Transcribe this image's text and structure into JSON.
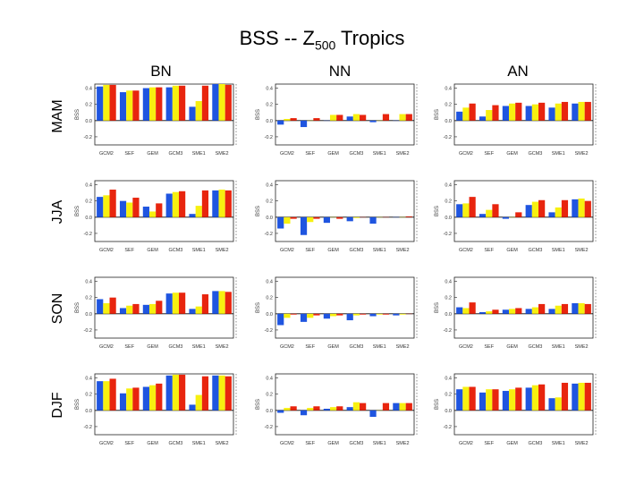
{
  "title": {
    "main": "BSS -- Z",
    "sub": "500",
    "suffix": " Tropics"
  },
  "columns": [
    "BN",
    "NN",
    "AN"
  ],
  "rows": [
    "MAM",
    "JJA",
    "SON",
    "DJF"
  ],
  "colors": {
    "blue": "#1f55e0",
    "yellow": "#f7f010",
    "red": "#e8250e"
  },
  "chart_data": {
    "type": "bar",
    "ylabel": "BSS",
    "categories": [
      "GCM2",
      "SEF",
      "GEM",
      "GCM3",
      "SME1",
      "SME2"
    ],
    "yticks": [
      0.4,
      0.2,
      0.0,
      -0.2
    ],
    "ylim": [
      -0.3,
      0.45
    ],
    "panels": [
      {
        "row": "MAM",
        "col": "BN",
        "values": [
          [
            0.42,
            0.44,
            0.44
          ],
          [
            0.35,
            0.37,
            0.37
          ],
          [
            0.4,
            0.41,
            0.41
          ],
          [
            0.41,
            0.43,
            0.43
          ],
          [
            0.17,
            0.24,
            0.43
          ],
          [
            0.45,
            0.45,
            0.44
          ]
        ]
      },
      {
        "row": "MAM",
        "col": "NN",
        "values": [
          [
            -0.05,
            0.02,
            0.03
          ],
          [
            -0.08,
            0.0,
            0.03
          ],
          [
            0.0,
            0.07,
            0.07
          ],
          [
            0.05,
            0.08,
            0.07
          ],
          [
            -0.02,
            0.0,
            0.08
          ],
          [
            0.0,
            0.08,
            0.08
          ]
        ]
      },
      {
        "row": "MAM",
        "col": "AN",
        "values": [
          [
            0.11,
            0.16,
            0.21
          ],
          [
            0.05,
            0.13,
            0.19
          ],
          [
            0.18,
            0.21,
            0.22
          ],
          [
            0.18,
            0.2,
            0.22
          ],
          [
            0.16,
            0.21,
            0.23
          ],
          [
            0.21,
            0.23,
            0.23
          ]
        ]
      },
      {
        "row": "JJA",
        "col": "BN",
        "values": [
          [
            0.25,
            0.27,
            0.34
          ],
          [
            0.2,
            0.18,
            0.24
          ],
          [
            0.13,
            0.07,
            0.17
          ],
          [
            0.29,
            0.31,
            0.32
          ],
          [
            0.04,
            0.14,
            0.33
          ],
          [
            0.33,
            0.34,
            0.33
          ]
        ]
      },
      {
        "row": "JJA",
        "col": "NN",
        "values": [
          [
            -0.14,
            -0.08,
            -0.02
          ],
          [
            -0.22,
            -0.06,
            -0.02
          ],
          [
            -0.07,
            0.0,
            -0.02
          ],
          [
            -0.05,
            -0.01,
            0.0
          ],
          [
            -0.08,
            0.0,
            0.0
          ],
          [
            0.0,
            0.0,
            0.01
          ]
        ]
      },
      {
        "row": "JJA",
        "col": "AN",
        "values": [
          [
            0.16,
            0.17,
            0.25
          ],
          [
            0.04,
            0.09,
            0.16
          ],
          [
            -0.02,
            0.0,
            0.06
          ],
          [
            0.15,
            0.19,
            0.21
          ],
          [
            0.06,
            0.12,
            0.21
          ],
          [
            0.22,
            0.23,
            0.2
          ]
        ]
      },
      {
        "row": "SON",
        "col": "BN",
        "values": [
          [
            0.18,
            0.13,
            0.2
          ],
          [
            0.07,
            0.1,
            0.12
          ],
          [
            0.11,
            0.12,
            0.16
          ],
          [
            0.25,
            0.26,
            0.26
          ],
          [
            0.06,
            0.09,
            0.24
          ],
          [
            0.28,
            0.28,
            0.27
          ]
        ]
      },
      {
        "row": "SON",
        "col": "NN",
        "values": [
          [
            -0.14,
            -0.05,
            -0.01
          ],
          [
            -0.1,
            -0.05,
            -0.02
          ],
          [
            -0.06,
            -0.03,
            -0.02
          ],
          [
            -0.08,
            -0.02,
            -0.01
          ],
          [
            -0.03,
            -0.01,
            -0.01
          ],
          [
            -0.02,
            -0.01,
            0.0
          ]
        ]
      },
      {
        "row": "SON",
        "col": "AN",
        "values": [
          [
            0.08,
            0.07,
            0.14
          ],
          [
            0.02,
            0.03,
            0.05
          ],
          [
            0.05,
            0.06,
            0.07
          ],
          [
            0.06,
            0.08,
            0.12
          ],
          [
            0.06,
            0.1,
            0.12
          ],
          [
            0.13,
            0.13,
            0.12
          ]
        ]
      },
      {
        "row": "DJF",
        "col": "BN",
        "values": [
          [
            0.36,
            0.36,
            0.39
          ],
          [
            0.21,
            0.27,
            0.28
          ],
          [
            0.29,
            0.31,
            0.33
          ],
          [
            0.43,
            0.44,
            0.44
          ],
          [
            0.07,
            0.19,
            0.42
          ],
          [
            0.43,
            0.43,
            0.42
          ]
        ]
      },
      {
        "row": "DJF",
        "col": "NN",
        "values": [
          [
            -0.03,
            0.03,
            0.05
          ],
          [
            -0.06,
            0.03,
            0.05
          ],
          [
            0.02,
            0.04,
            0.05
          ],
          [
            0.04,
            0.1,
            0.09
          ],
          [
            -0.08,
            0.0,
            0.09
          ],
          [
            0.09,
            0.09,
            0.09
          ]
        ]
      },
      {
        "row": "DJF",
        "col": "AN",
        "values": [
          [
            0.26,
            0.29,
            0.29
          ],
          [
            0.22,
            0.26,
            0.26
          ],
          [
            0.24,
            0.26,
            0.28
          ],
          [
            0.28,
            0.31,
            0.32
          ],
          [
            0.15,
            0.16,
            0.34
          ],
          [
            0.33,
            0.34,
            0.34
          ]
        ]
      }
    ]
  }
}
